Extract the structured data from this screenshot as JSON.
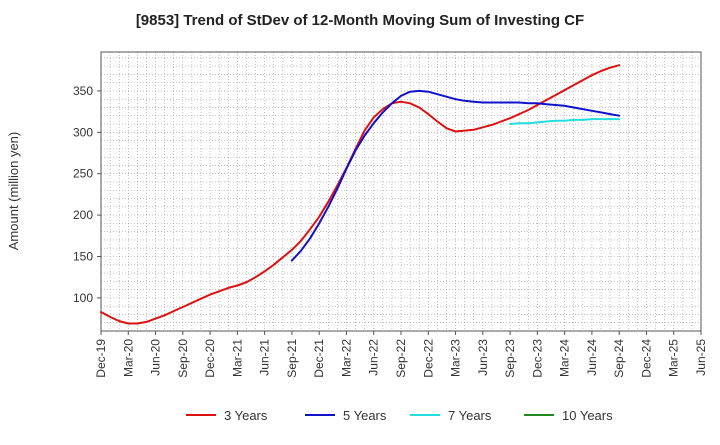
{
  "chart_data": {
    "type": "line",
    "title": "[9853]  Trend of StDev of 12-Month Moving Sum of Investing CF",
    "xlabel": "",
    "ylabel": "Amount (million yen)",
    "x_ticks": [
      "Dec-19",
      "Mar-20",
      "Jun-20",
      "Sep-20",
      "Dec-20",
      "Mar-21",
      "Jun-21",
      "Sep-21",
      "Dec-21",
      "Mar-22",
      "Jun-22",
      "Sep-22",
      "Dec-22",
      "Mar-23",
      "Jun-23",
      "Sep-23",
      "Dec-23",
      "Mar-24",
      "Jun-24",
      "Sep-24",
      "Dec-24",
      "Mar-25",
      "Jun-25"
    ],
    "y_ticks": [
      100,
      150,
      200,
      250,
      300,
      350
    ],
    "ylim": [
      60,
      397
    ],
    "grid": true,
    "legend_position": "bottom",
    "series": [
      {
        "name": "3 Years",
        "color": "#dd1111",
        "x": [
          "Dec-19",
          "Jan-20",
          "Feb-20",
          "Mar-20",
          "Apr-20",
          "May-20",
          "Jun-20",
          "Jul-20",
          "Aug-20",
          "Sep-20",
          "Oct-20",
          "Nov-20",
          "Dec-20",
          "Jan-21",
          "Feb-21",
          "Mar-21",
          "Apr-21",
          "May-21",
          "Jun-21",
          "Jul-21",
          "Aug-21",
          "Sep-21",
          "Oct-21",
          "Nov-21",
          "Dec-21",
          "Jan-22",
          "Feb-22",
          "Mar-22",
          "Apr-22",
          "May-22",
          "Jun-22",
          "Jul-22",
          "Aug-22",
          "Sep-22",
          "Oct-22",
          "Nov-22",
          "Dec-22",
          "Jan-23",
          "Feb-23",
          "Mar-23",
          "Apr-23",
          "May-23",
          "Jun-23",
          "Jul-23",
          "Aug-23",
          "Sep-23",
          "Oct-23",
          "Nov-23",
          "Dec-23",
          "Jan-24",
          "Feb-24",
          "Mar-24",
          "Apr-24",
          "May-24",
          "Jun-24",
          "Jul-24",
          "Aug-24",
          "Sep-24"
        ],
        "values": [
          83,
          77,
          72,
          69,
          69,
          71,
          75,
          79,
          84,
          89,
          94,
          99,
          104,
          108,
          112,
          115,
          119,
          125,
          132,
          140,
          149,
          158,
          169,
          183,
          198,
          216,
          236,
          257,
          280,
          302,
          318,
          328,
          335,
          337,
          335,
          330,
          322,
          313,
          305,
          301,
          302,
          303,
          306,
          309,
          313,
          317,
          322,
          327,
          333,
          339,
          345,
          351,
          357,
          363,
          369,
          374,
          378,
          381
        ]
      },
      {
        "name": "5 Years",
        "color": "#1111cc",
        "x": [
          "Sep-21",
          "Oct-21",
          "Nov-21",
          "Dec-21",
          "Jan-22",
          "Feb-22",
          "Mar-22",
          "Apr-22",
          "May-22",
          "Jun-22",
          "Jul-22",
          "Aug-22",
          "Sep-22",
          "Oct-22",
          "Nov-22",
          "Dec-22",
          "Jan-23",
          "Feb-23",
          "Mar-23",
          "Apr-23",
          "May-23",
          "Jun-23",
          "Jul-23",
          "Aug-23",
          "Sep-23",
          "Oct-23",
          "Nov-23",
          "Dec-23",
          "Jan-24",
          "Feb-24",
          "Mar-24",
          "Apr-24",
          "May-24",
          "Jun-24",
          "Jul-24",
          "Aug-24",
          "Sep-24"
        ],
        "values": [
          145,
          157,
          172,
          190,
          210,
          232,
          256,
          278,
          296,
          311,
          324,
          335,
          344,
          349,
          350,
          349,
          346,
          343,
          340,
          338,
          337,
          336,
          336,
          336,
          336,
          336,
          335,
          335,
          334,
          333,
          332,
          330,
          328,
          326,
          324,
          322,
          320
        ]
      },
      {
        "name": "7 Years",
        "color": "#22dddd",
        "x": [
          "Sep-23",
          "Oct-23",
          "Nov-23",
          "Dec-23",
          "Jan-24",
          "Feb-24",
          "Mar-24",
          "Apr-24",
          "May-24",
          "Jun-24",
          "Jul-24",
          "Aug-24",
          "Sep-24"
        ],
        "values": [
          310,
          311,
          311,
          312,
          313,
          314,
          314,
          315,
          315,
          316,
          316,
          316,
          316
        ]
      },
      {
        "name": "10 Years",
        "color": "#228822",
        "x": [],
        "values": []
      }
    ]
  }
}
